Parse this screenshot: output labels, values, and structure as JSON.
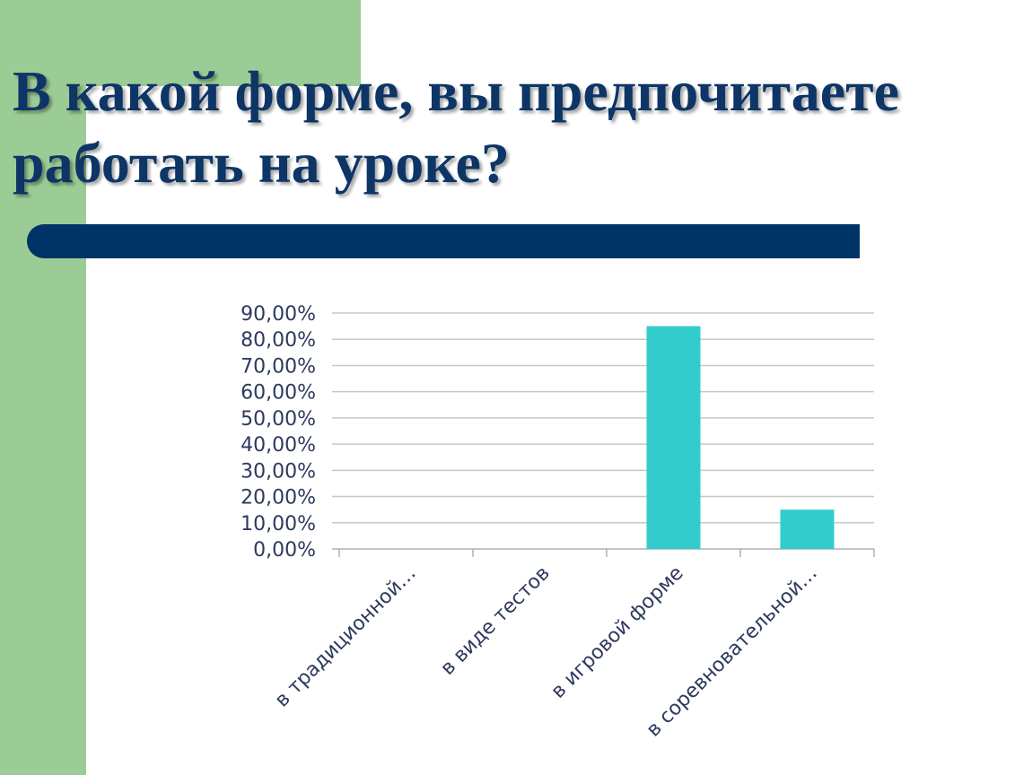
{
  "slide": {
    "title_line1": "В какой форме, вы предпочитаете",
    "title_line2": "работать на уроке?",
    "colors": {
      "decor": "#9ccc95",
      "title": "#0d3566",
      "divider": "#003366"
    }
  },
  "chart_data": {
    "type": "bar",
    "categories": [
      "в традиционной…",
      "в виде тестов",
      "в игровой форме",
      "в соревновательной…"
    ],
    "values": [
      0,
      0,
      85,
      15
    ],
    "title": "",
    "xlabel": "",
    "ylabel": "",
    "ylim": [
      0,
      90
    ],
    "yticks": [
      "0,00%",
      "10,00%",
      "20,00%",
      "30,00%",
      "40,00%",
      "50,00%",
      "60,00%",
      "70,00%",
      "80,00%",
      "90,00%"
    ],
    "grid": true,
    "legend": "none",
    "bar_color": "#33cccc"
  }
}
